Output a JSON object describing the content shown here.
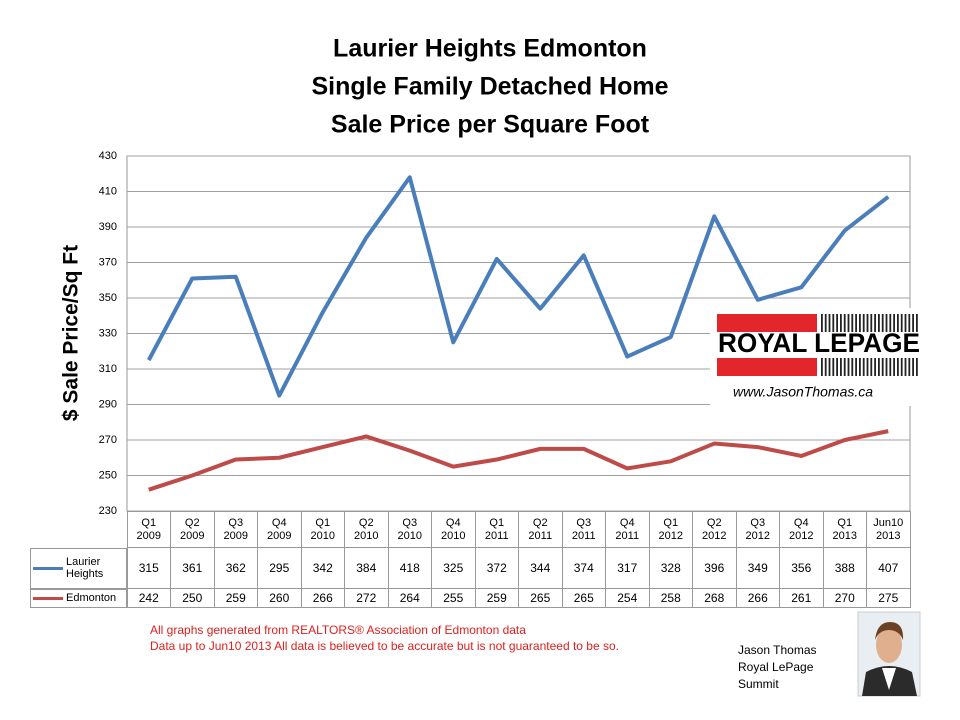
{
  "chart_data": {
    "type": "line",
    "title_lines": [
      "Laurier Heights Edmonton",
      "Single Family Detached Home",
      "Sale Price per Square Foot"
    ],
    "y_label": "$ Sale Price/Sq Ft",
    "categories": [
      "Q1 2009",
      "Q2 2009",
      "Q3 2009",
      "Q4 2009",
      "Q1 2010",
      "Q2 2010",
      "Q3 2010",
      "Q4 2010",
      "Q1 2011",
      "Q2 2011",
      "Q3 2011",
      "Q4 2011",
      "Q1 2012",
      "Q2 2012",
      "Q3 2012",
      "Q4 2012",
      "Q1 2013",
      "Jun10 2013"
    ],
    "series": [
      {
        "name": "Laurier Heights",
        "color": "#4a7ebb",
        "values": [
          315,
          361,
          362,
          295,
          342,
          384,
          418,
          325,
          372,
          344,
          374,
          317,
          328,
          396,
          349,
          356,
          388,
          407
        ]
      },
      {
        "name": "Edmonton",
        "color": "#be4b48",
        "values": [
          242,
          250,
          259,
          260,
          266,
          272,
          264,
          255,
          259,
          265,
          265,
          254,
          258,
          268,
          266,
          261,
          270,
          275
        ]
      }
    ],
    "ylim": [
      230,
      430
    ],
    "yticks": [
      230,
      250,
      270,
      290,
      310,
      330,
      350,
      370,
      390,
      410,
      430
    ],
    "grid": true
  },
  "notes": [
    "All graphs generated from REALTORS® Association of Edmonton data",
    "Data up to  Jun10 2013  All data is believed to be accurate but is not guaranteed to be so."
  ],
  "logo": {
    "brand": "ROYAL LEPAGE",
    "url": "www.JasonThomas.ca"
  },
  "agent": [
    "Jason Thomas",
    "Royal LePage",
    "Summit"
  ]
}
